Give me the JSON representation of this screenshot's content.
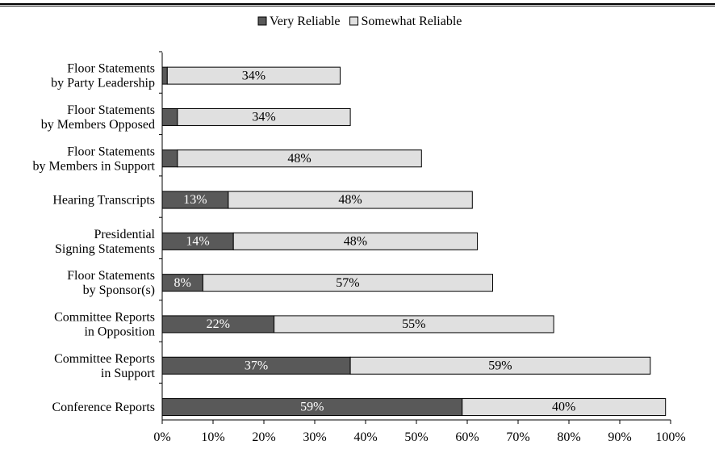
{
  "chart_data": {
    "type": "bar",
    "orientation": "horizontal",
    "stacked": true,
    "categories": [
      "Floor Statements\nby Party Leadership",
      "Floor Statements\nby Members Opposed",
      "Floor Statements\nby Members in Support",
      "Hearing Transcripts",
      "Presidential\nSigning Statements",
      "Floor Statements\nby Sponsor(s)",
      "Committee Reports\nin Opposition",
      "Committee Reports\nin Support",
      "Conference Reports"
    ],
    "series": [
      {
        "name": "Very Reliable",
        "color": "#595959",
        "values": [
          1,
          3,
          3,
          13,
          14,
          8,
          22,
          37,
          59
        ],
        "labels": [
          "1%",
          "3%",
          "3%",
          "13%",
          "14%",
          "8%",
          "22%",
          "37%",
          "59%"
        ]
      },
      {
        "name": "Somewhat Reliable",
        "color": "#e0e0e0",
        "values": [
          34,
          34,
          48,
          48,
          48,
          57,
          55,
          59,
          40
        ],
        "labels": [
          "34%",
          "34%",
          "48%",
          "48%",
          "48%",
          "57%",
          "55%",
          "59%",
          "40%"
        ]
      }
    ],
    "xlim": [
      0,
      100
    ],
    "xticks": [
      "0%",
      "10%",
      "20%",
      "30%",
      "40%",
      "50%",
      "60%",
      "70%",
      "80%",
      "90%",
      "100%"
    ],
    "legend": "top",
    "grid": false,
    "title": "",
    "xlabel": "",
    "ylabel": ""
  }
}
